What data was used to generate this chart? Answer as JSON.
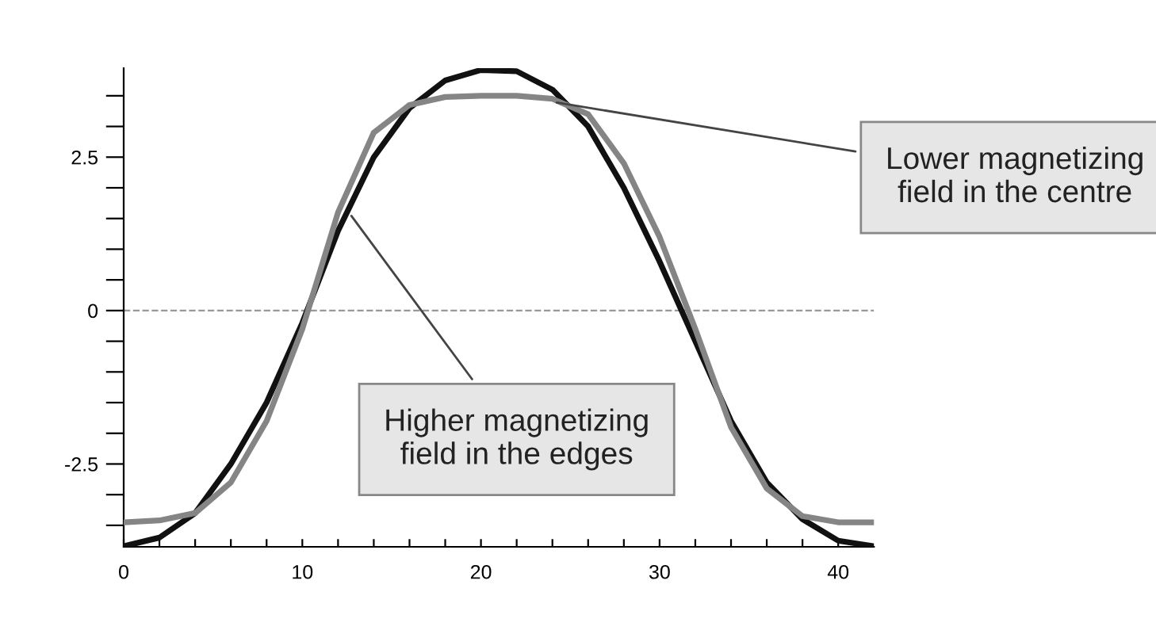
{
  "chart_data": {
    "type": "line",
    "x": [
      0,
      2,
      4,
      6,
      8,
      10,
      12,
      14,
      16,
      18,
      20,
      22,
      24,
      26,
      28,
      30,
      32,
      34,
      36,
      38,
      40,
      42
    ],
    "series": [
      {
        "color": "#111111",
        "values": [
          -3.84,
          -3.7,
          -3.3,
          -2.5,
          -1.5,
          -0.2,
          1.3,
          2.5,
          3.3,
          3.75,
          3.92,
          3.9,
          3.6,
          3.0,
          2.0,
          0.8,
          -0.5,
          -1.8,
          -2.8,
          -3.4,
          -3.75,
          -3.84
        ]
      },
      {
        "color": "#858585",
        "values": [
          -3.45,
          -3.42,
          -3.3,
          -2.8,
          -1.8,
          -0.3,
          1.6,
          2.9,
          3.35,
          3.48,
          3.5,
          3.5,
          3.45,
          3.2,
          2.4,
          1.2,
          -0.3,
          -1.9,
          -2.9,
          -3.35,
          -3.45,
          -3.45
        ]
      }
    ],
    "xlim": [
      0,
      42
    ],
    "ylim": [
      -3.85,
      3.95
    ],
    "xticks": [
      0,
      {
        "value": 2,
        "label": null
      },
      {
        "value": 4,
        "label": null
      },
      {
        "value": 6,
        "label": null
      },
      {
        "value": 8,
        "label": null
      },
      10,
      {
        "value": 12,
        "label": null
      },
      {
        "value": 14,
        "label": null
      },
      {
        "value": 16,
        "label": null
      },
      {
        "value": 18,
        "label": null
      },
      20,
      {
        "value": 22,
        "label": null
      },
      {
        "value": 24,
        "label": null
      },
      {
        "value": 26,
        "label": null
      },
      {
        "value": 28,
        "label": null
      },
      30,
      {
        "value": 32,
        "label": null
      },
      {
        "value": 34,
        "label": null
      },
      {
        "value": 36,
        "label": null
      },
      {
        "value": 38,
        "label": null
      },
      40
    ],
    "yticks": [
      {
        "value": -3.5,
        "label": null
      },
      {
        "value": -3,
        "label": null
      },
      -2.5,
      {
        "value": -2,
        "label": null
      },
      {
        "value": -1.5,
        "label": null
      },
      {
        "value": -1,
        "label": null
      },
      {
        "value": -0.5,
        "label": null
      },
      0,
      {
        "value": 0.5,
        "label": null
      },
      {
        "value": 1,
        "label": null
      },
      {
        "value": 1.5,
        "label": null
      },
      {
        "value": 2,
        "label": null
      },
      2.5,
      {
        "value": 3,
        "label": null
      },
      {
        "value": 3.5,
        "label": null
      }
    ],
    "ref_lines": [
      {
        "axis": "y",
        "value": 0,
        "color": "#999999",
        "line_style": "dashed"
      }
    ],
    "annotations": [
      {
        "text": "Lower magnetizing\nfield in the centre",
        "x": 24,
        "y": 3.4
      },
      {
        "text": "Higher magnetizing\nfield in the edges",
        "x": 12.6,
        "y": 1.6
      }
    ],
    "grid": false,
    "legend": false,
    "marker": "none",
    "line_style": "solid"
  }
}
